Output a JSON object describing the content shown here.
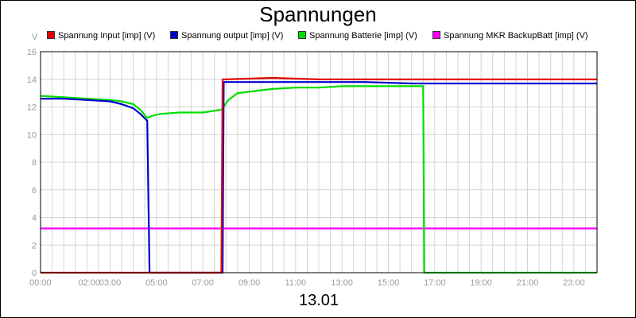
{
  "chart_data": {
    "type": "line",
    "title": "Spannungen",
    "xlabel": "13.01",
    "ylabel": "V",
    "ylim": [
      0,
      16
    ],
    "xlim": [
      0,
      24
    ],
    "grid": true,
    "legend": "top",
    "y_ticks": [
      0,
      2,
      4,
      6,
      8,
      10,
      12,
      14,
      16
    ],
    "x_ticks": [
      {
        "x": 0,
        "label": "00:00"
      },
      {
        "x": 2.1,
        "label": "02:00"
      },
      {
        "x": 3,
        "label": "03:00"
      },
      {
        "x": 5,
        "label": "05:00"
      },
      {
        "x": 7,
        "label": "07:00"
      },
      {
        "x": 9,
        "label": "09:00"
      },
      {
        "x": 11,
        "label": "11:00"
      },
      {
        "x": 13,
        "label": "13:00"
      },
      {
        "x": 15,
        "label": "15:00"
      },
      {
        "x": 17,
        "label": "17:00"
      },
      {
        "x": 19,
        "label": "19:00"
      },
      {
        "x": 21,
        "label": "21:00"
      },
      {
        "x": 23,
        "label": "23:00"
      }
    ],
    "series": [
      {
        "name": "Spannung Input [imp] (V)",
        "color": "#e00000",
        "x": [
          0,
          7.8,
          7.85,
          8.0,
          10,
          12,
          14,
          16,
          18,
          20,
          22,
          24
        ],
        "y": [
          0,
          0,
          14.0,
          14.0,
          14.1,
          14.0,
          14.0,
          14.0,
          14.0,
          14.0,
          14.0,
          14.0
        ]
      },
      {
        "name": "Spannung output [imp] (V)",
        "color": "#0000d0",
        "x": [
          0,
          1,
          2,
          3,
          3.5,
          4,
          4.3,
          4.6,
          4.7,
          4.8,
          7.85,
          7.9,
          8.0,
          10,
          12,
          14,
          16,
          18,
          20,
          22,
          24
        ],
        "y": [
          12.6,
          12.6,
          12.5,
          12.4,
          12.2,
          11.9,
          11.5,
          11.0,
          0,
          0,
          0,
          13.8,
          13.8,
          13.8,
          13.8,
          13.8,
          13.7,
          13.7,
          13.7,
          13.7,
          13.7
        ]
      },
      {
        "name": "Spannung Batterie [imp] (V)",
        "color": "#00dd00",
        "x": [
          0,
          1,
          2,
          3,
          3.5,
          4,
          4.3,
          4.6,
          4.9,
          5.2,
          6,
          7,
          7.8,
          8.1,
          8.5,
          9,
          10,
          11,
          12,
          13,
          14,
          15,
          16,
          16.5,
          16.55,
          17,
          24
        ],
        "y": [
          12.8,
          12.7,
          12.6,
          12.5,
          12.4,
          12.2,
          11.8,
          11.2,
          11.4,
          11.5,
          11.6,
          11.6,
          11.8,
          12.5,
          13.0,
          13.1,
          13.3,
          13.4,
          13.4,
          13.5,
          13.5,
          13.5,
          13.5,
          13.5,
          0,
          0,
          0
        ]
      },
      {
        "name": "Spannung MKR BackupBatt [imp] (V)",
        "color": "#ff00ff",
        "x": [
          0,
          24
        ],
        "y": [
          3.2,
          3.2
        ]
      }
    ]
  }
}
